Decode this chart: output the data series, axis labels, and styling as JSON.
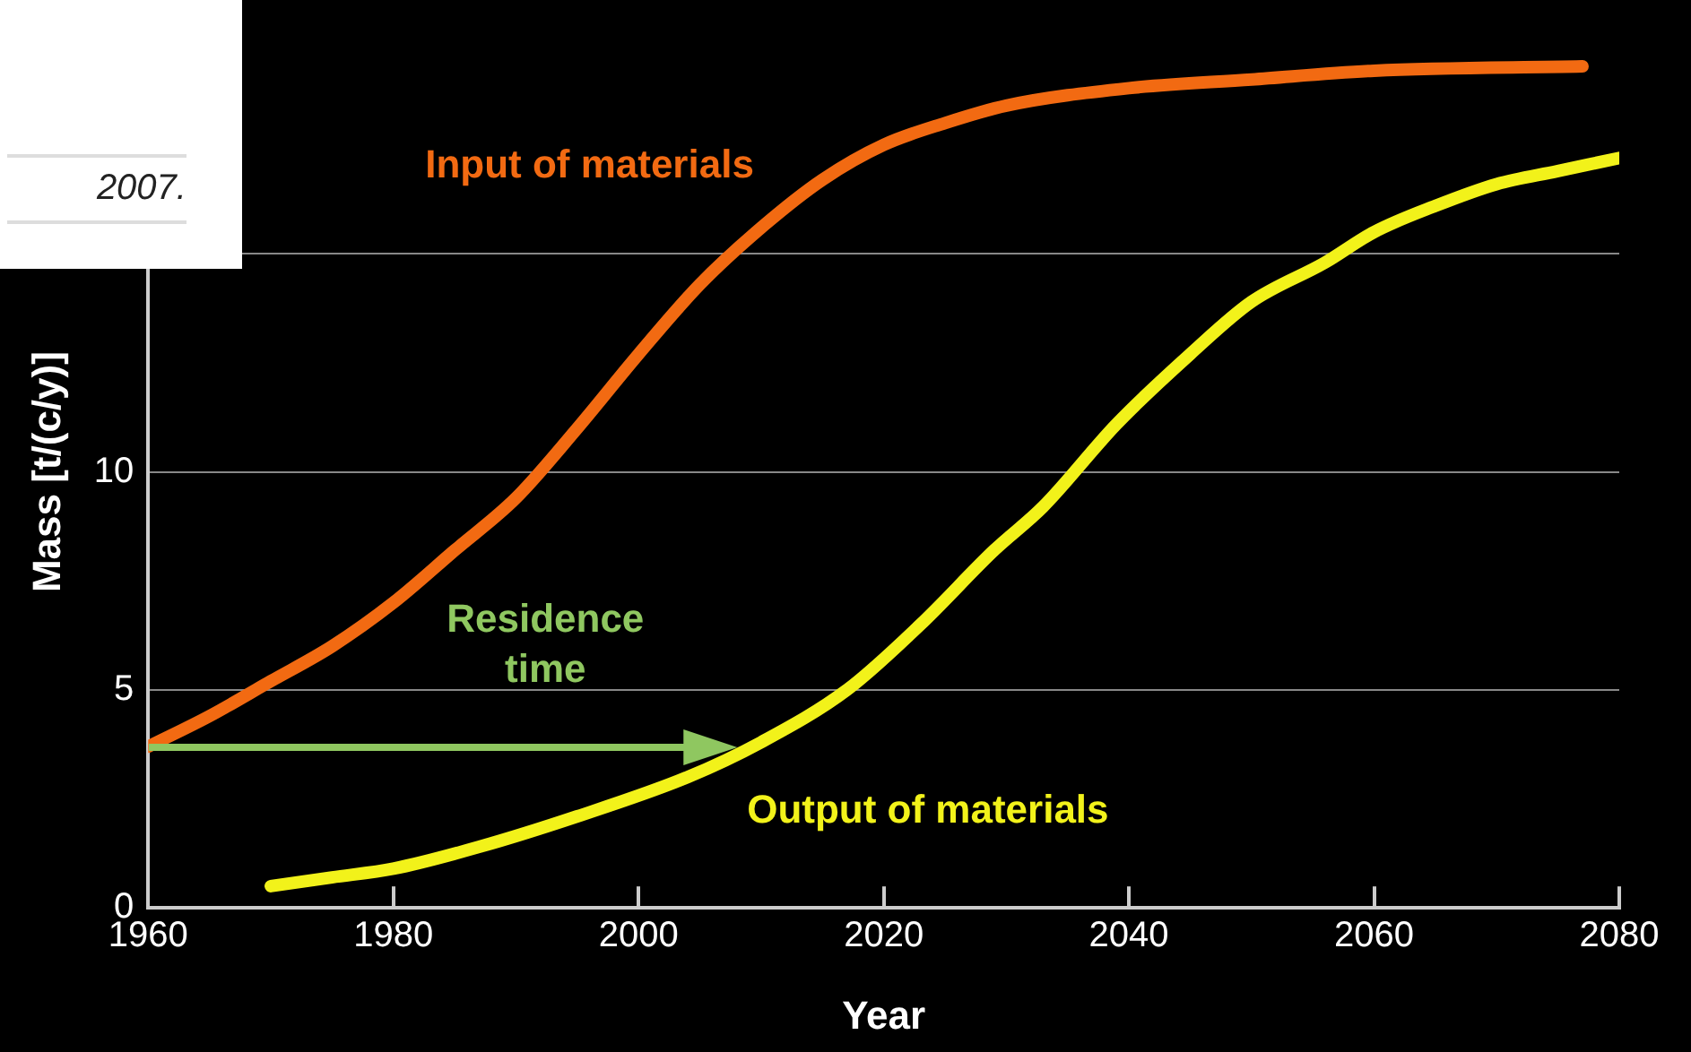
{
  "chart_data": {
    "type": "line",
    "xlabel": "Year",
    "ylabel": "Mass [t/(c/y)]",
    "xlim": [
      1960,
      2080
    ],
    "xticks": [
      1960,
      1980,
      2000,
      2020,
      2040,
      2060,
      2080
    ],
    "ylim": [
      0,
      20
    ],
    "yticks": [
      0,
      5,
      10,
      {
        "value": 15,
        "label": null
      }
    ],
    "grid": "y",
    "legend": false,
    "marker": "none",
    "line_style": "solid",
    "annotations": [
      "Residence time",
      "2007."
    ],
    "series": [
      {
        "name": "Input of materials",
        "color": "#f26a12",
        "x": [
          1960,
          1965,
          1970,
          1975,
          1980,
          1985,
          1990,
          1995,
          2000,
          2005,
          2010,
          2015,
          2020,
          2025,
          2030,
          2040,
          2050,
          2060,
          2077
        ],
        "values": [
          3.7,
          4.4,
          5.2,
          6.0,
          7.0,
          8.2,
          9.4,
          11.0,
          12.7,
          14.3,
          15.6,
          16.7,
          17.5,
          18.0,
          18.4,
          18.8,
          19.0,
          19.2,
          19.3
        ]
      },
      {
        "name": "Output of materials",
        "color": "#f2f21a",
        "x": [
          1970,
          1975,
          1980,
          1987,
          1995,
          2004,
          2010,
          2017,
          2023,
          2029,
          2033,
          2039,
          2045,
          2050,
          2056,
          2060,
          2065,
          2070,
          2075,
          2080
        ],
        "values": [
          0.5,
          0.7,
          0.9,
          1.4,
          2.1,
          3.0,
          3.8,
          5.0,
          6.5,
          8.2,
          9.2,
          11.1,
          12.7,
          13.9,
          14.8,
          15.5,
          16.1,
          16.6,
          16.9,
          17.2
        ]
      }
    ]
  }
}
